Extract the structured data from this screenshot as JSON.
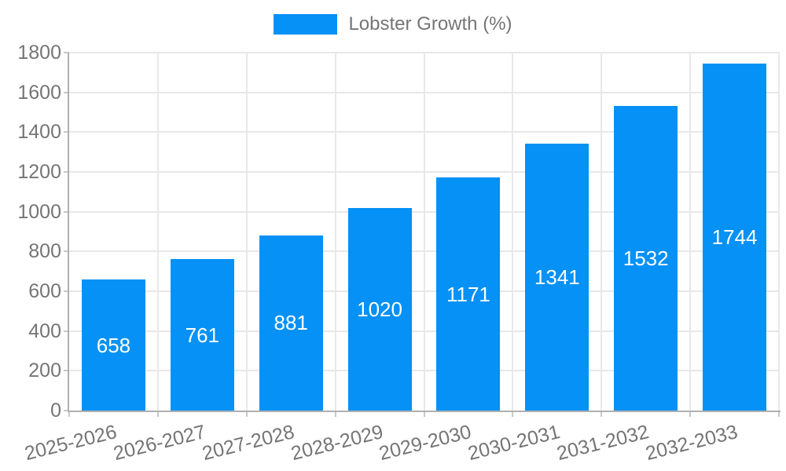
{
  "chart_data": {
    "type": "bar",
    "title": "",
    "legend": "Lobster Growth (%)",
    "legend_position": "top",
    "categories": [
      "2025-2026",
      "2026-2027",
      "2027-2028",
      "2028-2029",
      "2029-2030",
      "2030-2031",
      "2031-2032",
      "2032-2033"
    ],
    "values": [
      658,
      761,
      881,
      1020,
      1171,
      1341,
      1532,
      1744
    ],
    "xlabel": "",
    "ylabel": "",
    "ylim": [
      0,
      1800
    ],
    "ytick_step": 200,
    "grid": "on",
    "bar_color": "#0591f5",
    "value_label_color": "#ffffff",
    "axis_text_color": "#757575",
    "grid_color": "#e8e8e8",
    "axis_line_color": "#b0b0b0"
  }
}
